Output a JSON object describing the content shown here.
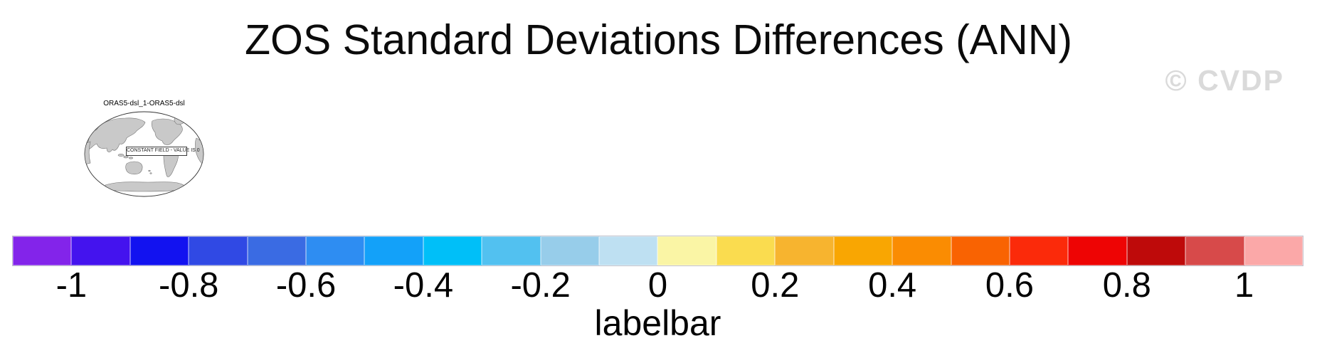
{
  "page": {
    "title": "ZOS Standard Deviations Differences (ANN)",
    "watermark": "© CVDP",
    "background": "#ffffff"
  },
  "map_panel": {
    "title": "ORAS5-dsl_1-ORAS5-dsl",
    "overlay_note": "CONSTANT FIELD - VALUE IS 0",
    "land_color": "#c9c9c9",
    "land_outline_color": "#777777",
    "globe_outline_color": "#333333"
  },
  "chart_data": {
    "type": "heatmap",
    "title": "ZOS Standard Deviations Differences (ANN)",
    "panels": [
      {
        "title": "ORAS5-dsl_1-ORAS5-dsl",
        "annotation": "CONSTANT FIELD - VALUE IS 0"
      }
    ],
    "colorbar": {
      "label": "labelbar",
      "orientation": "horizontal",
      "tick_labels": [
        "-1",
        "-0.8",
        "-0.6",
        "-0.4",
        "-0.2",
        "0",
        "0.2",
        "0.4",
        "0.6",
        "0.8",
        "1"
      ],
      "tick_values": [
        -1,
        -0.8,
        -0.6,
        -0.4,
        -0.2,
        0,
        0.2,
        0.4,
        0.6,
        0.8,
        1
      ],
      "num_boxes": 22,
      "box_value_width": 0.1,
      "range": [
        -1.1,
        1.1
      ],
      "colors": [
        "#8324EA",
        "#4413EE",
        "#1212F0",
        "#3049E4",
        "#3A6BE3",
        "#2E8DF2",
        "#13A1F9",
        "#00BFF8",
        "#52C1F0",
        "#97CDEA",
        "#BEE0F2",
        "#FAF5A5",
        "#FADC4F",
        "#F7B42F",
        "#F9A602",
        "#FA8C02",
        "#F96302",
        "#FB2A0A",
        "#EE0404",
        "#BE0A0A",
        "#D74A4A",
        "#FBA8A8"
      ]
    }
  }
}
